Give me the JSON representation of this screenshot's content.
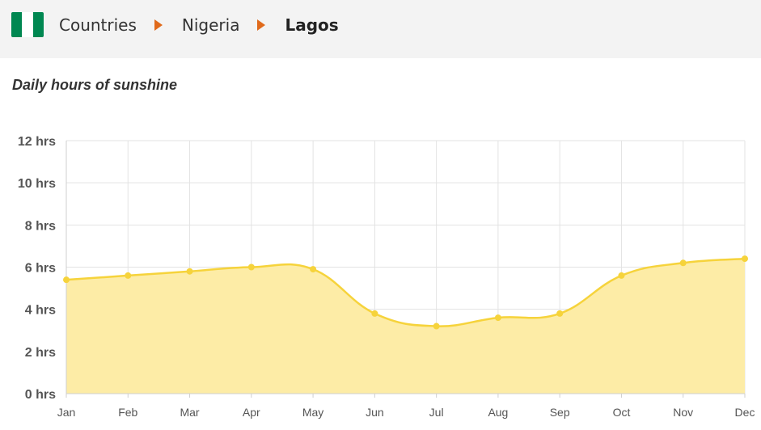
{
  "breadcrumb": {
    "items": [
      {
        "label": "Countries"
      },
      {
        "label": "Nigeria"
      },
      {
        "label": "Lagos"
      }
    ],
    "flag_colors": [
      "#008751",
      "#ffffff",
      "#008751"
    ],
    "separator_color": "#e06a1b"
  },
  "chart_data": {
    "type": "area",
    "title": "Daily hours of sunshine",
    "categories": [
      "Jan",
      "Feb",
      "Mar",
      "Apr",
      "May",
      "Jun",
      "Jul",
      "Aug",
      "Sep",
      "Oct",
      "Nov",
      "Dec"
    ],
    "y_ticks": [
      "0 hrs",
      "2 hrs",
      "4 hrs",
      "6 hrs",
      "8 hrs",
      "10 hrs",
      "12 hrs"
    ],
    "values": [
      5.4,
      5.6,
      5.8,
      6.0,
      5.9,
      3.8,
      3.2,
      3.6,
      3.8,
      5.6,
      6.2,
      6.4
    ],
    "ylim": [
      0,
      12
    ],
    "grid": true,
    "line_color": "#f6d33b",
    "fill_color": "#fdeca6",
    "xlabel": "",
    "ylabel": ""
  }
}
